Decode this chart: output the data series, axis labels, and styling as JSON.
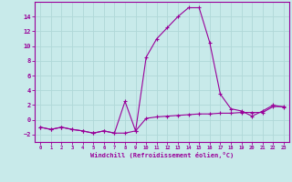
{
  "xlabel": "Windchill (Refroidissement éolien,°C)",
  "x": [
    0,
    1,
    2,
    3,
    4,
    5,
    6,
    7,
    8,
    9,
    10,
    11,
    12,
    13,
    14,
    15,
    16,
    17,
    18,
    19,
    20,
    21,
    22,
    23
  ],
  "y_line1": [
    -1,
    -1.3,
    -1,
    -1.3,
    -1.5,
    -1.8,
    -1.5,
    -1.8,
    -1.8,
    -1.5,
    0.2,
    0.4,
    0.5,
    0.6,
    0.7,
    0.8,
    0.8,
    0.9,
    0.9,
    1.0,
    1.0,
    1.0,
    1.8,
    1.8
  ],
  "y_line2": [
    -1,
    -1.3,
    -1,
    -1.3,
    -1.5,
    -1.8,
    -1.5,
    -1.8,
    2.5,
    -1.5,
    8.5,
    11,
    12.5,
    14,
    15.2,
    15.2,
    10.5,
    3.5,
    1.5,
    1.2,
    0.5,
    1.2,
    2.0,
    1.7
  ],
  "ylim": [
    -3,
    16
  ],
  "xlim": [
    -0.5,
    23.5
  ],
  "yticks": [
    -2,
    0,
    2,
    4,
    6,
    8,
    10,
    12,
    14
  ],
  "xticks": [
    0,
    1,
    2,
    3,
    4,
    5,
    6,
    7,
    8,
    9,
    10,
    11,
    12,
    13,
    14,
    15,
    16,
    17,
    18,
    19,
    20,
    21,
    22,
    23
  ],
  "line_color": "#990099",
  "bg_color": "#c8eaea",
  "grid_color": "#b0d8d8",
  "linewidth": 0.8,
  "markersize": 3,
  "marker": "+"
}
